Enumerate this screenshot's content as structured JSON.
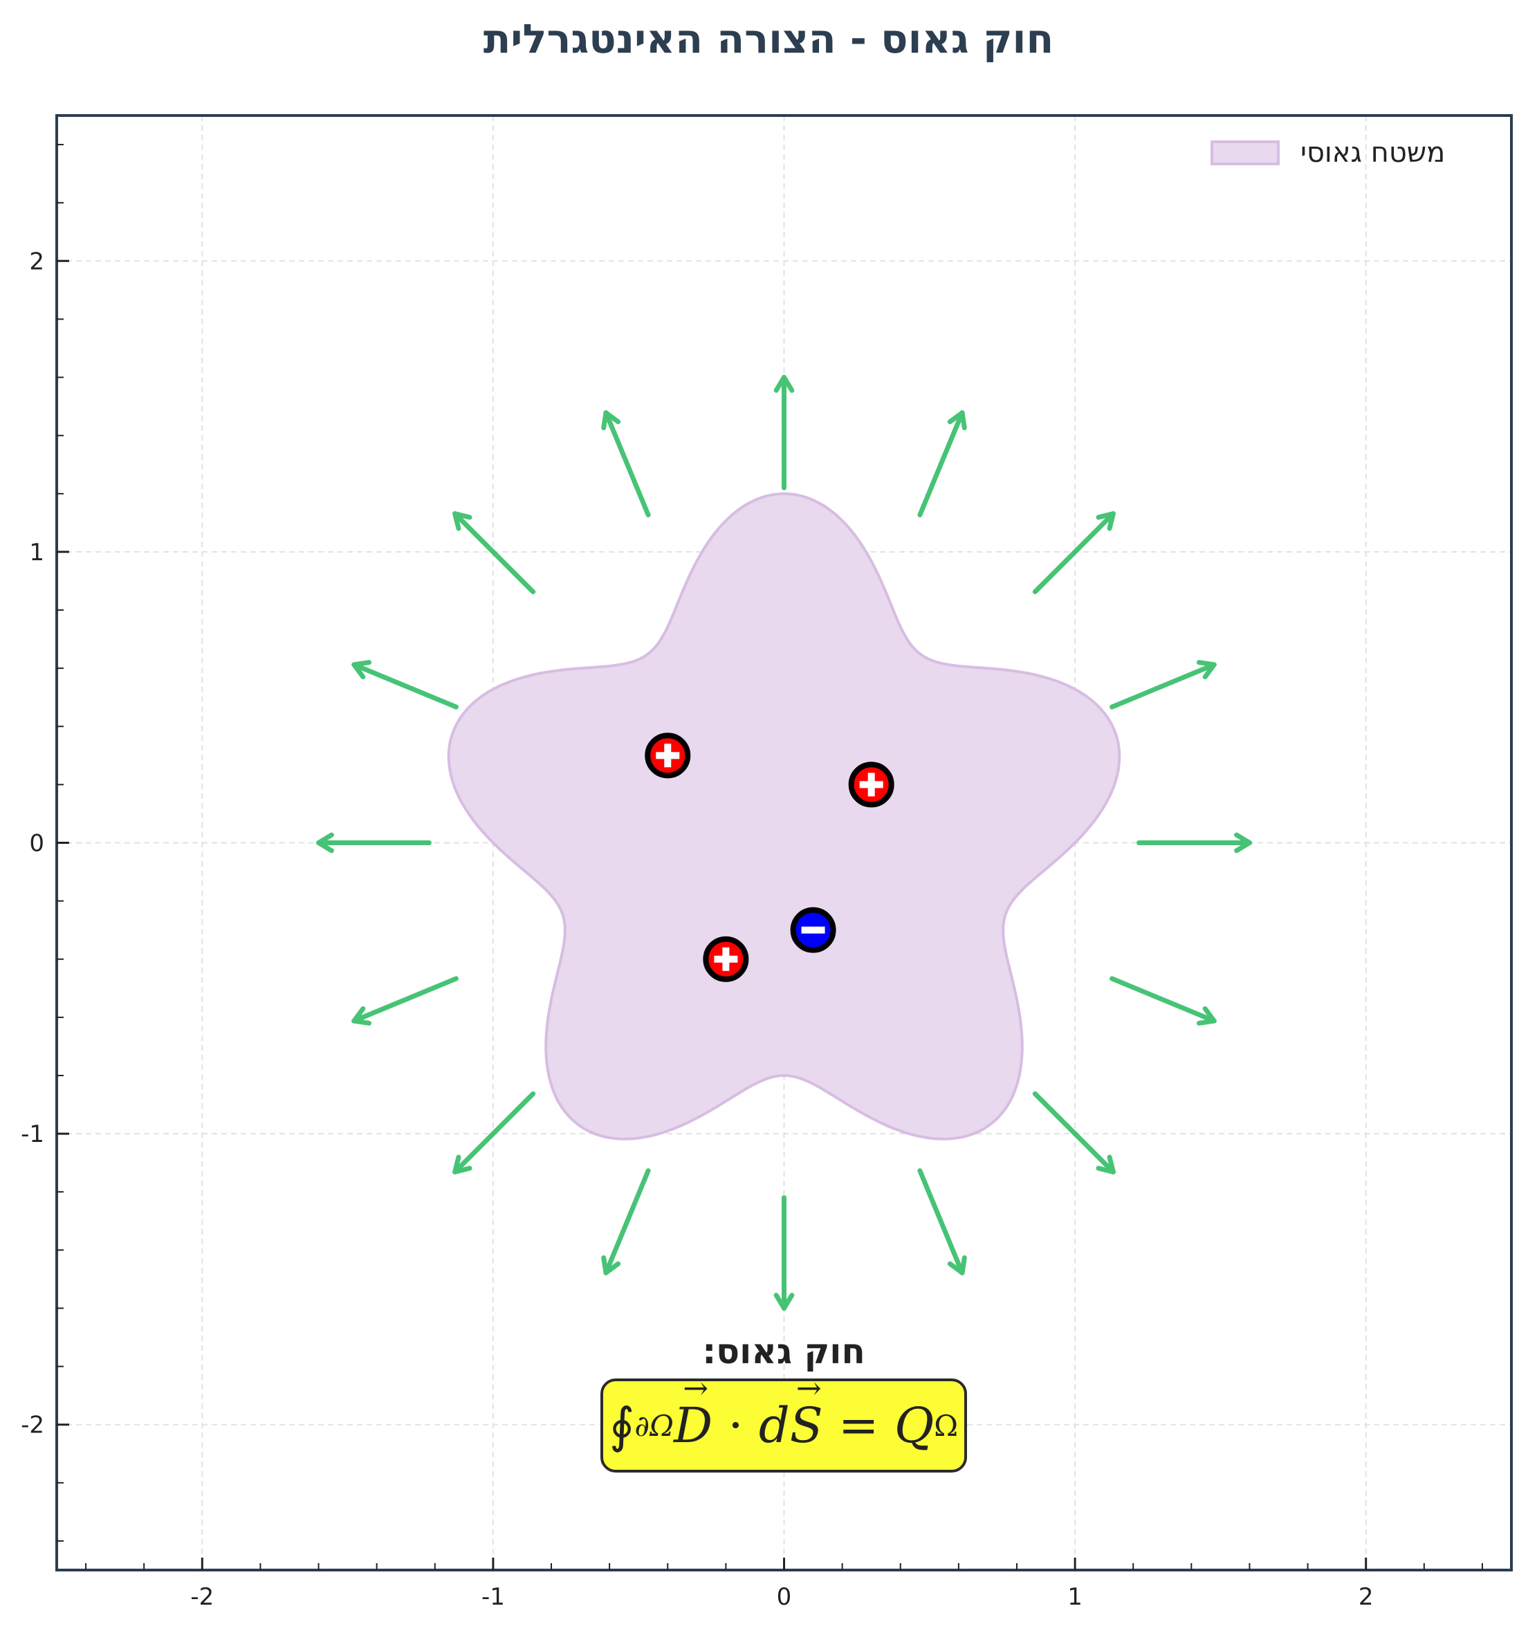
{
  "title": "חוק גאוס - הצורה האינטגרלית",
  "legend": {
    "label": "משטח גאוסי",
    "fill": "#e8d9ee",
    "edge": "#d7bde2"
  },
  "formula": {
    "label": "חוק גאוס:",
    "integral": "∮",
    "integral_sub": "∂Ω",
    "D": "D",
    "dot": "·",
    "d": "d",
    "S": "S",
    "equals": "=",
    "Q": "Q",
    "Q_sub": "Ω",
    "box_color": "#fdfd35"
  },
  "colors": {
    "arrow": "#27b95e",
    "positive": "#ff0000",
    "negative": "#0000ff",
    "axis": "#2c3e50"
  },
  "chart_data": {
    "type": "scatter",
    "title": "חוק גאוס - הצורה האינטגרלית",
    "xlabel": "",
    "ylabel": "",
    "xlim": [
      -2.5,
      2.5
    ],
    "ylim": [
      -2.5,
      2.5
    ],
    "xticks": [
      "-2",
      "-1",
      "0",
      "1",
      "2"
    ],
    "yticks": [
      "2",
      "1",
      "0",
      "-1",
      "-2"
    ],
    "grid": true,
    "legend_position": "upper right",
    "gaussian_surface": {
      "name": "משטח גאוסי",
      "shape": "r(θ) = 1 + 0.2·sin(5θ)"
    },
    "charges": [
      {
        "x": -0.4,
        "y": 0.3,
        "sign": "+"
      },
      {
        "x": 0.3,
        "y": 0.2,
        "sign": "+"
      },
      {
        "x": -0.2,
        "y": -0.4,
        "sign": "+"
      },
      {
        "x": 0.1,
        "y": -0.3,
        "sign": "-"
      }
    ],
    "flux_arrows": {
      "count": 16,
      "r_start": 1.22,
      "r_end": 1.6
    }
  }
}
